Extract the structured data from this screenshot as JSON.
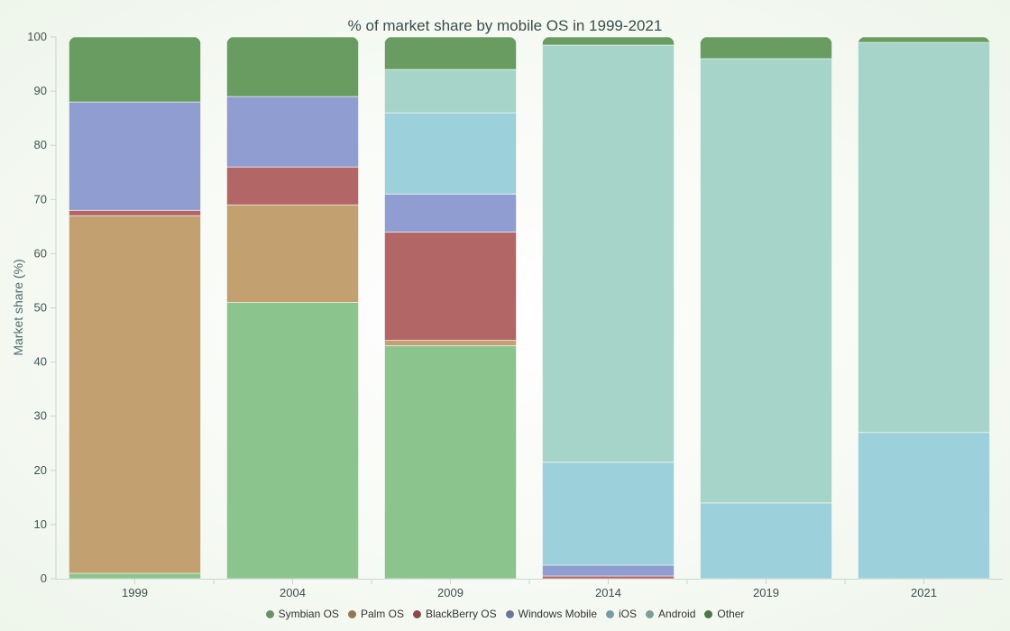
{
  "chart_data": {
    "type": "bar",
    "stacked": true,
    "title": "% of market share by mobile OS in 1999-2021",
    "xlabel": "",
    "ylabel": "Market share (%)",
    "ylim": [
      0,
      100
    ],
    "yticks": [
      0,
      10,
      20,
      30,
      40,
      50,
      60,
      70,
      80,
      90,
      100
    ],
    "categories": [
      "1999",
      "2004",
      "2009",
      "2014",
      "2019",
      "2021"
    ],
    "legend_position": "bottom",
    "grid": false,
    "series": [
      {
        "name": "Symbian OS",
        "color": "#8bc48c",
        "values": [
          1,
          51,
          43,
          0,
          0,
          0
        ]
      },
      {
        "name": "Palm OS",
        "color": "#c2a070",
        "values": [
          66,
          18,
          1,
          0,
          0,
          0
        ]
      },
      {
        "name": "BlackBerry OS",
        "color": "#b36666",
        "values": [
          1,
          7,
          20,
          0.5,
          0,
          0
        ]
      },
      {
        "name": "Windows Mobile",
        "color": "#8f9dd0",
        "values": [
          20,
          13,
          7,
          2,
          0,
          0
        ]
      },
      {
        "name": "iOS",
        "color": "#9cd0da",
        "values": [
          0,
          0,
          15,
          19,
          14,
          27
        ]
      },
      {
        "name": "Android",
        "color": "#a6d4c8",
        "values": [
          0,
          0,
          8,
          77,
          82,
          72
        ]
      },
      {
        "name": "Other",
        "color": "#689c60",
        "values": [
          12,
          11,
          6,
          1.5,
          4,
          1
        ]
      }
    ]
  }
}
